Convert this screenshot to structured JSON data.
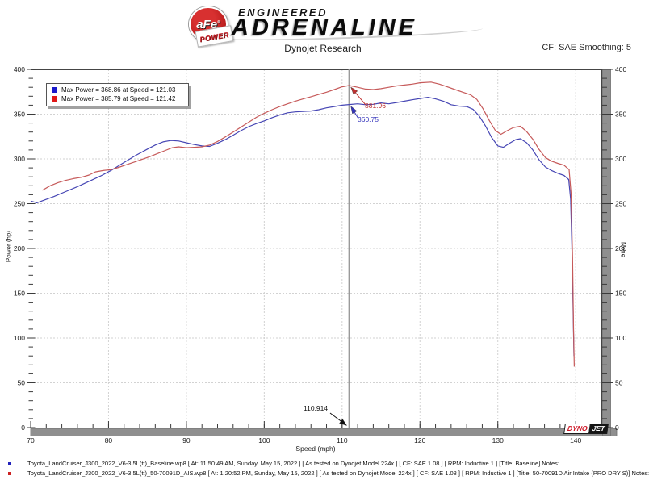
{
  "header": {
    "logo_afe": "aFe",
    "logo_reg": "®",
    "logo_power": "POWER",
    "logo_engineered": "ENGINEERED",
    "logo_adrenaline": "ADRENALINE",
    "report_title": "Dynojet Research",
    "smoothing": "CF: SAE Smoothing: 5"
  },
  "chart_data": {
    "type": "line",
    "xlabel": "Speed (mph)",
    "ylabel_left": "Power (hp)",
    "ylabel_right": "None",
    "xlim": [
      70,
      143.3
    ],
    "ylim": [
      0,
      400
    ],
    "x_major_ticks": [
      70,
      80,
      90,
      100,
      110,
      120,
      130,
      140
    ],
    "x_minor_step": 2,
    "y_major_ticks": [
      0,
      50,
      100,
      150,
      200,
      250,
      300,
      350,
      400
    ],
    "y_minor_step": 10,
    "grid": true,
    "legend_position": "top-left",
    "legend": [
      {
        "color": "#1a1acc",
        "label": "Max Power = 368.86 at Speed = 121.03"
      },
      {
        "color": "#e01818",
        "label": "Max Power = 385.79 at Speed = 121.42"
      }
    ],
    "cursor": {
      "x": 110.914,
      "x_label": "110.914",
      "blue": 360.75,
      "blue_label": "360.75",
      "red": 381.96,
      "red_label": "381.96"
    },
    "series": [
      {
        "name": "Baseline",
        "color": "#4646b4",
        "points": [
          [
            70,
            253
          ],
          [
            70.8,
            251
          ],
          [
            71.6,
            253.5
          ],
          [
            73,
            258
          ],
          [
            74.5,
            263.5
          ],
          [
            76,
            269
          ],
          [
            77.5,
            275
          ],
          [
            79,
            281
          ],
          [
            80.5,
            288
          ],
          [
            82,
            296
          ],
          [
            83.5,
            304
          ],
          [
            85,
            311
          ],
          [
            86,
            315.5
          ],
          [
            87,
            319
          ],
          [
            88,
            320.5
          ],
          [
            89,
            320
          ],
          [
            90,
            318
          ],
          [
            91,
            316
          ],
          [
            92,
            314.5
          ],
          [
            93,
            314
          ],
          [
            94,
            317.5
          ],
          [
            95,
            321.5
          ],
          [
            96,
            326.5
          ],
          [
            97,
            331.5
          ],
          [
            98,
            336
          ],
          [
            99,
            339.5
          ],
          [
            100,
            342.5
          ],
          [
            101,
            346
          ],
          [
            102,
            349
          ],
          [
            103,
            351.5
          ],
          [
            104,
            352.5
          ],
          [
            105,
            353
          ],
          [
            106,
            353.5
          ],
          [
            107,
            355
          ],
          [
            108,
            357
          ],
          [
            109,
            358.5
          ],
          [
            110,
            360
          ],
          [
            110.914,
            360.75
          ],
          [
            112,
            361.5
          ],
          [
            113,
            360.5
          ],
          [
            114,
            361
          ],
          [
            115,
            362.5
          ],
          [
            116,
            361.5
          ],
          [
            117,
            363
          ],
          [
            118,
            364.5
          ],
          [
            119,
            366
          ],
          [
            120,
            367.5
          ],
          [
            121.03,
            368.86
          ],
          [
            122,
            367
          ],
          [
            123,
            364.5
          ],
          [
            124,
            360.5
          ],
          [
            125,
            359
          ],
          [
            126,
            358.5
          ],
          [
            126.8,
            355.5
          ],
          [
            127.6,
            348
          ],
          [
            128.4,
            337
          ],
          [
            129.2,
            324
          ],
          [
            130,
            314.5
          ],
          [
            130.7,
            313
          ],
          [
            131.5,
            317.5
          ],
          [
            132.3,
            321.5
          ],
          [
            132.9,
            322.5
          ],
          [
            133.7,
            318
          ],
          [
            134.5,
            310
          ],
          [
            135.3,
            299
          ],
          [
            136.1,
            291
          ],
          [
            136.9,
            287
          ],
          [
            137.7,
            284
          ],
          [
            138.5,
            281.5
          ],
          [
            139.1,
            277
          ],
          [
            139.35,
            255
          ],
          [
            139.55,
            190
          ],
          [
            139.7,
            115
          ],
          [
            139.78,
            80
          ]
        ]
      },
      {
        "name": "50-70091D Air Intake (PRO DRY S)",
        "color": "#c65a5a",
        "points": [
          [
            71.5,
            265
          ],
          [
            72.5,
            270
          ],
          [
            73.5,
            273.5
          ],
          [
            74.5,
            276
          ],
          [
            75.5,
            278
          ],
          [
            76.5,
            279.5
          ],
          [
            77.5,
            282
          ],
          [
            78.3,
            285.5
          ],
          [
            79.3,
            287
          ],
          [
            80.3,
            288
          ],
          [
            81.3,
            290.5
          ],
          [
            82.3,
            293.5
          ],
          [
            83.3,
            296.5
          ],
          [
            84.3,
            299.5
          ],
          [
            85.3,
            302.5
          ],
          [
            86.3,
            306
          ],
          [
            87.3,
            309.5
          ],
          [
            88.2,
            312.5
          ],
          [
            89,
            313.5
          ],
          [
            90,
            312.5
          ],
          [
            91,
            313
          ],
          [
            92,
            313.5
          ],
          [
            93,
            315.5
          ],
          [
            94,
            319.5
          ],
          [
            95,
            324.5
          ],
          [
            96,
            330
          ],
          [
            97,
            335.5
          ],
          [
            98,
            341
          ],
          [
            99,
            346.5
          ],
          [
            100,
            351
          ],
          [
            101,
            355
          ],
          [
            102,
            358.5
          ],
          [
            103,
            361.5
          ],
          [
            104,
            364.5
          ],
          [
            105,
            367
          ],
          [
            106,
            369.5
          ],
          [
            107,
            372
          ],
          [
            108,
            374.5
          ],
          [
            109,
            377.5
          ],
          [
            110,
            380.5
          ],
          [
            110.914,
            381.96
          ],
          [
            112,
            380
          ],
          [
            113,
            378
          ],
          [
            114,
            377.5
          ],
          [
            115,
            378.5
          ],
          [
            116,
            380
          ],
          [
            117,
            381.5
          ],
          [
            118,
            382.5
          ],
          [
            119,
            383.5
          ],
          [
            120,
            385
          ],
          [
            121.42,
            385.79
          ],
          [
            122.5,
            383.5
          ],
          [
            123.5,
            380.5
          ],
          [
            124.5,
            377.5
          ],
          [
            125.5,
            374.5
          ],
          [
            126.5,
            371.5
          ],
          [
            127.3,
            366.5
          ],
          [
            128.1,
            356
          ],
          [
            128.9,
            343
          ],
          [
            129.7,
            331.5
          ],
          [
            130.4,
            327.5
          ],
          [
            131.2,
            331.5
          ],
          [
            132,
            335
          ],
          [
            132.9,
            336.5
          ],
          [
            133.7,
            330.5
          ],
          [
            134.5,
            322
          ],
          [
            135.3,
            310.5
          ],
          [
            136.1,
            301.5
          ],
          [
            136.9,
            297.5
          ],
          [
            137.7,
            295
          ],
          [
            138.5,
            293
          ],
          [
            139.15,
            288
          ],
          [
            139.4,
            262
          ],
          [
            139.6,
            190
          ],
          [
            139.72,
            110
          ],
          [
            139.82,
            68
          ]
        ]
      }
    ]
  },
  "branding": {
    "dyno": "DYNO",
    "jet": "JET"
  },
  "footer": {
    "lines": [
      {
        "color": "#2222bb",
        "text": "Toyota_LandCruiser_J300_2022_V6-3.5L(tt)_Baseline.wp8 [ At: 11:50:49 AM, Sunday, May 15, 2022 ] [ As tested on Dynojet Model 224x ] [ CF: SAE 1.08 ] [ RPM: Inductive 1 ] [Title: Baseline]  Notes:"
      },
      {
        "color": "#cc2222",
        "text": "Toyota_LandCruiser_J300_2022_V6-3.5L(tt)_50-70091D_AIS.wp8 [ At: 1:20:52 PM, Sunday, May 15, 2022 ] [ As tested on Dynojet Model 224x ] [ CF: SAE 1.08 ] [ RPM: Inductive 1 ] [Title: 50-70091D Air Intake (PRO DRY S)]  Notes:"
      }
    ]
  }
}
